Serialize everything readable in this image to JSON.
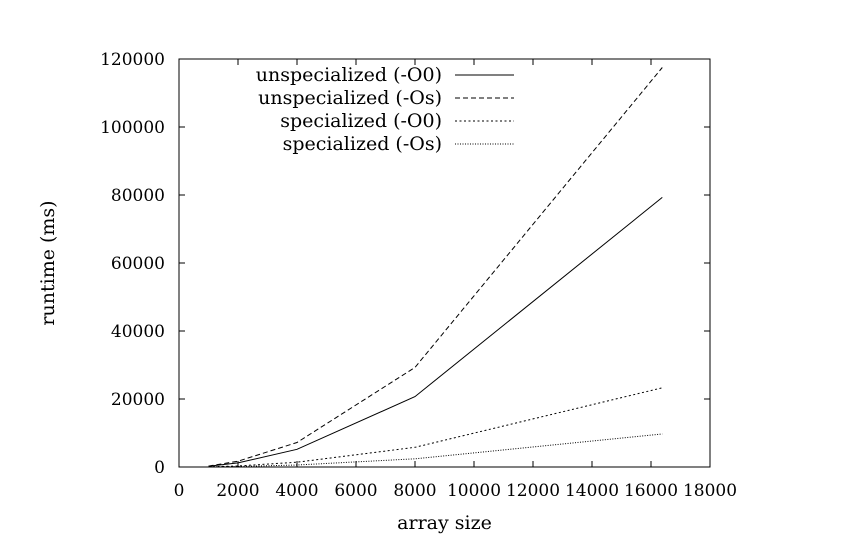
{
  "chart_data": {
    "type": "line",
    "title": "",
    "xlabel": "array size",
    "ylabel": "runtime (ms)",
    "xlim": [
      0,
      18000
    ],
    "ylim": [
      0,
      120000
    ],
    "x_ticks": [
      0,
      2000,
      4000,
      6000,
      8000,
      10000,
      12000,
      14000,
      16000,
      18000
    ],
    "y_ticks": [
      0,
      20000,
      40000,
      60000,
      80000,
      100000,
      120000
    ],
    "legend_position": "top-left",
    "grid": false,
    "x": [
      1000,
      2000,
      4000,
      8000,
      16384
    ],
    "series": [
      {
        "name": "unspecialized (-O0)",
        "dash": "",
        "values": [
          200,
          1200,
          5200,
          20700,
          79300
        ]
      },
      {
        "name": "unspecialized (-Os)",
        "dash": "5,3",
        "values": [
          250,
          1700,
          7200,
          29300,
          117500
        ]
      },
      {
        "name": "specialized (-O0)",
        "dash": "2,2.5",
        "values": [
          50,
          300,
          1400,
          5800,
          23300
        ]
      },
      {
        "name": "specialized (-Os)",
        "dash": "1,1.5",
        "values": [
          20,
          150,
          600,
          2400,
          9700
        ]
      }
    ]
  }
}
